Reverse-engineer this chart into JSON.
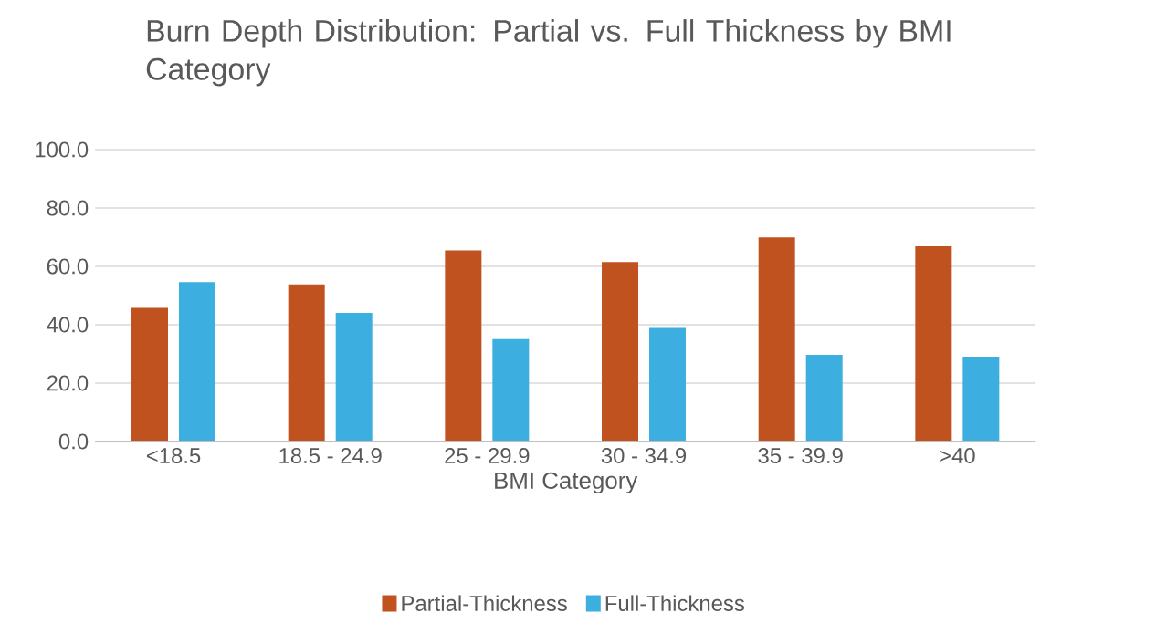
{
  "chart_data": {
    "type": "bar",
    "title": "Burn Depth Distribution: Partial vs. Full Thickness by BMI Category",
    "xlabel": "BMI Category",
    "categories": [
      "<18.5",
      "18.5 - 24.9",
      "25 - 29.9",
      "30 - 34.9",
      "35 - 39.9",
      ">40"
    ],
    "series": [
      {
        "name": "Partial-Thickness",
        "color": "#c0521f",
        "values": [
          45.8,
          53.8,
          65.5,
          61.5,
          69.9,
          66.9
        ]
      },
      {
        "name": "Full-Thickness",
        "color": "#3daee0",
        "values": [
          54.6,
          44.1,
          35.1,
          38.9,
          29.7,
          29.1
        ]
      }
    ],
    "ylim": [
      0,
      100
    ],
    "yticks": [
      {
        "value": 0,
        "label": "0.0"
      },
      {
        "value": 20,
        "label": "20.0"
      },
      {
        "value": 40,
        "label": "40.0"
      },
      {
        "value": 60,
        "label": "60.0"
      },
      {
        "value": 80,
        "label": "80.0"
      },
      {
        "value": 100,
        "label": "100.0"
      }
    ],
    "grid": "y",
    "legend": "bottom"
  }
}
